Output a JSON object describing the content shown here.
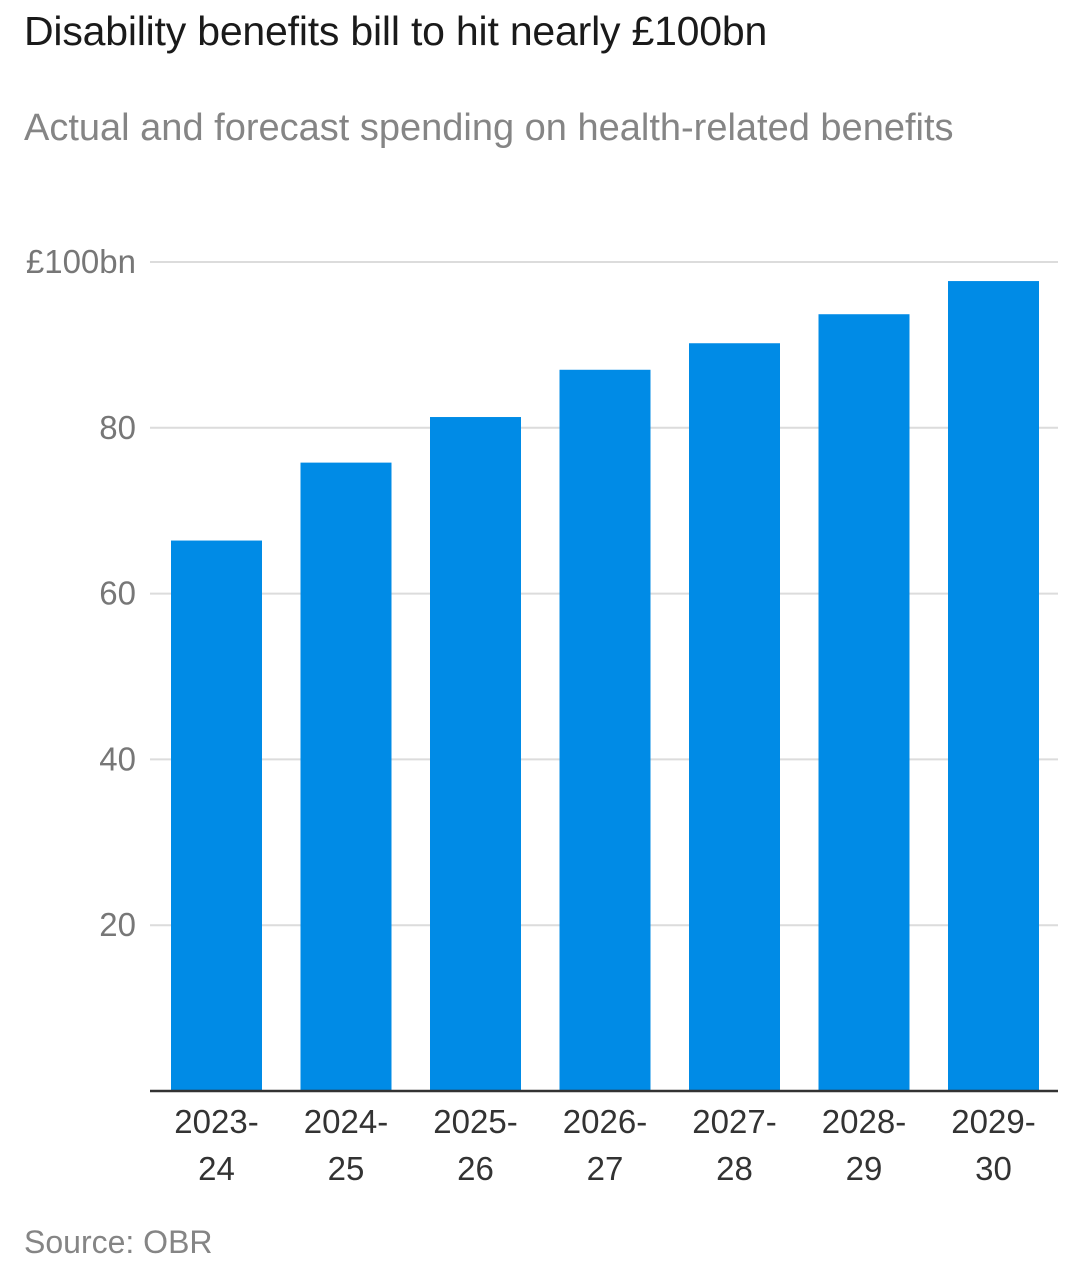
{
  "header": {
    "title": "Disability benefits bill to hit nearly £100bn",
    "subtitle": "Actual and forecast spending on health-related benefits"
  },
  "footer": {
    "source": "Source: OBR"
  },
  "colors": {
    "bar": "#008be6",
    "grid": "#dcdcdc",
    "axis": "#333333"
  },
  "chart_data": {
    "type": "bar",
    "title": "Disability benefits bill to hit nearly £100bn",
    "subtitle": "Actual and forecast spending on health-related benefits",
    "xlabel": "",
    "ylabel": "",
    "ylim": [
      0,
      100
    ],
    "grid": true,
    "yticks": [
      {
        "value": 20,
        "label": "20"
      },
      {
        "value": 40,
        "label": "40"
      },
      {
        "value": 60,
        "label": "60"
      },
      {
        "value": 80,
        "label": "80"
      },
      {
        "value": 100,
        "label": "£100bn"
      }
    ],
    "categories": [
      [
        "2023-",
        "24"
      ],
      [
        "2024-",
        "25"
      ],
      [
        "2025-",
        "26"
      ],
      [
        "2026-",
        "27"
      ],
      [
        "2027-",
        "28"
      ],
      [
        "2028-",
        "29"
      ],
      [
        "2029-",
        "30"
      ]
    ],
    "values": [
      66.4,
      75.8,
      81.3,
      87.0,
      90.2,
      93.7,
      97.7
    ],
    "source": "Source: OBR"
  }
}
